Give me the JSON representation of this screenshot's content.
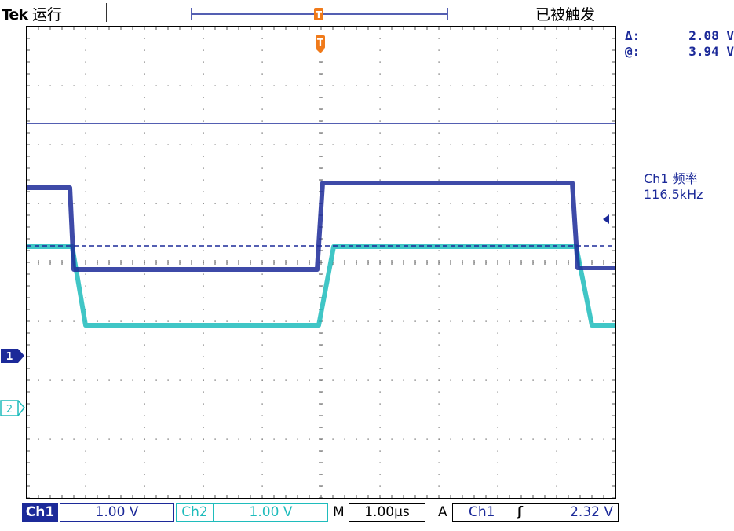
{
  "header": {
    "brand": "Tek",
    "run_state": "运行",
    "trigger_status": "已被触发"
  },
  "readouts": {
    "delta_label": "Δ:",
    "delta_value": "2.08 V",
    "at_label": "@:",
    "at_value": "3.94 V"
  },
  "measurement": {
    "label": "Ch1 频率",
    "value": "116.5kHz"
  },
  "markers": {
    "trigger": "T",
    "ch1": "1",
    "ch2": "2"
  },
  "footer": {
    "ch1_label": "Ch1",
    "ch1_scale": "1.00 V",
    "ch2_label": "Ch2",
    "ch2_scale": "1.00 V",
    "timebase_label": "M",
    "timebase_value": "1.00µs",
    "trigger_mode": "A",
    "trigger_source": "Ch1",
    "trigger_slope": "ʃ",
    "trigger_level": "2.32 V"
  },
  "colors": {
    "ch1": "#1c2a99",
    "ch2": "#1fbcbc",
    "trigger": "#f07a1a",
    "grid": "#666666"
  }
}
